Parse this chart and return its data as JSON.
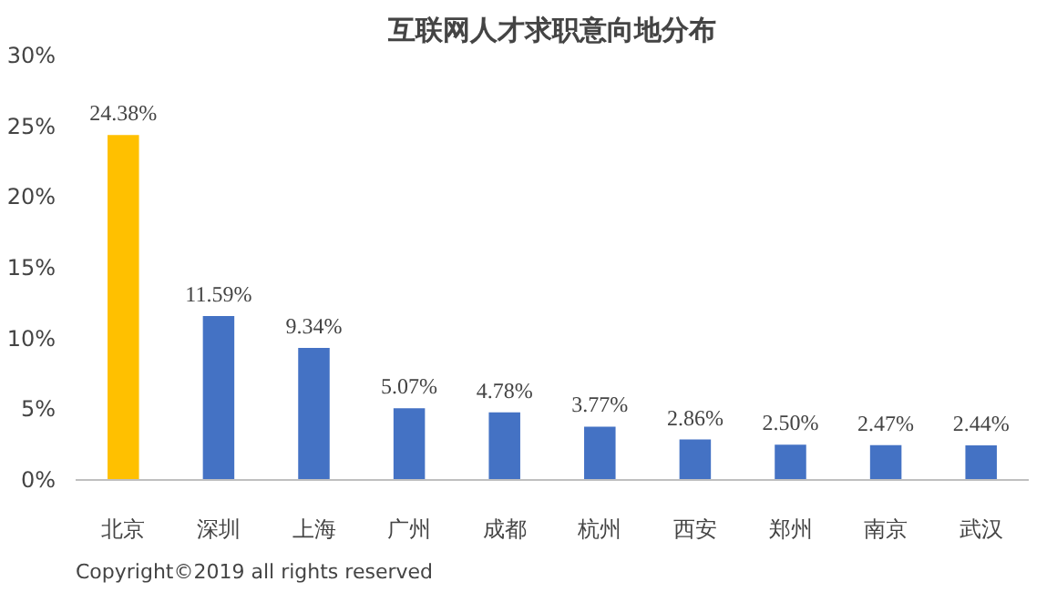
{
  "chart_data": {
    "type": "bar",
    "title": "互联网人才求职意向地分布",
    "categories": [
      "北京",
      "深圳",
      "上海",
      "广州",
      "成都",
      "杭州",
      "西安",
      "郑州",
      "南京",
      "武汉"
    ],
    "values": [
      24.38,
      11.59,
      9.34,
      5.07,
      4.78,
      3.77,
      2.86,
      2.5,
      2.47,
      2.44
    ],
    "colors": [
      "#ffc000",
      "#4472c4",
      "#4472c4",
      "#4472c4",
      "#4472c4",
      "#4472c4",
      "#4472c4",
      "#4472c4",
      "#4472c4",
      "#4472c4"
    ],
    "value_labels": [
      "24.38%",
      "11.59%",
      "9.34%",
      "5.07%",
      "4.78%",
      "3.77%",
      "2.86%",
      "2.50%",
      "2.47%",
      "2.44%"
    ],
    "ylim": [
      0,
      30
    ],
    "yticks": [
      {
        "value": 0,
        "label": "0%"
      },
      {
        "value": 5,
        "label": "5%"
      },
      {
        "value": 10,
        "label": "10%"
      },
      {
        "value": 15,
        "label": "15%"
      },
      {
        "value": 20,
        "label": "20%"
      },
      {
        "value": 25,
        "label": "25%"
      },
      {
        "value": 30,
        "label": "30%"
      }
    ],
    "grid": false,
    "annotations": [
      "Copyright©2019 all rights reserved"
    ]
  }
}
